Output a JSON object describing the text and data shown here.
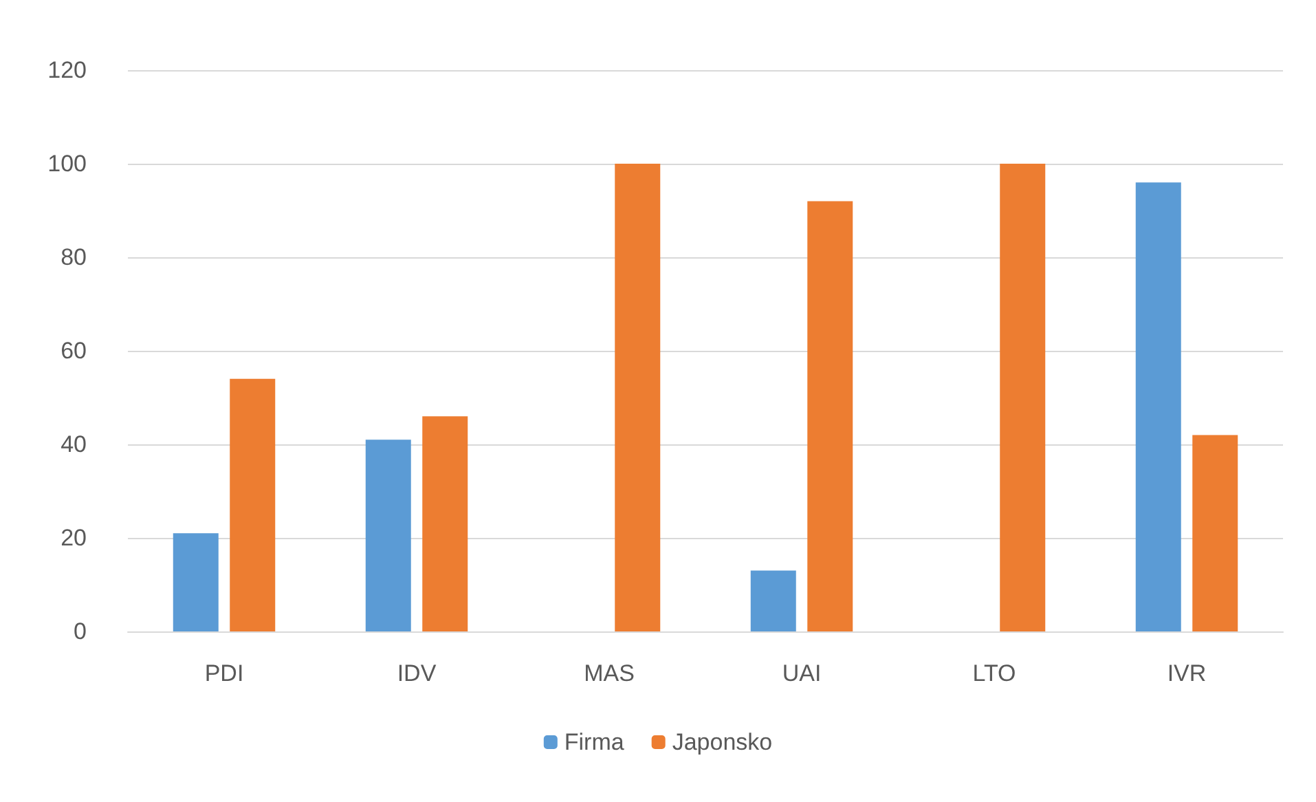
{
  "chart_data": {
    "type": "bar",
    "categories": [
      "PDI",
      "IDV",
      "MAS",
      "UAI",
      "LTO",
      "IVR"
    ],
    "series": [
      {
        "name": "Firma",
        "color": "#5b9bd5",
        "values": [
          21,
          41,
          0,
          13,
          0,
          96
        ]
      },
      {
        "name": "Japonsko",
        "color": "#ed7d31",
        "values": [
          54,
          46,
          100,
          92,
          100,
          42
        ]
      }
    ],
    "ylim": [
      0,
      120
    ],
    "yticks": [
      0,
      20,
      40,
      60,
      80,
      100,
      120
    ],
    "grid": "y",
    "legend": "bottom"
  }
}
